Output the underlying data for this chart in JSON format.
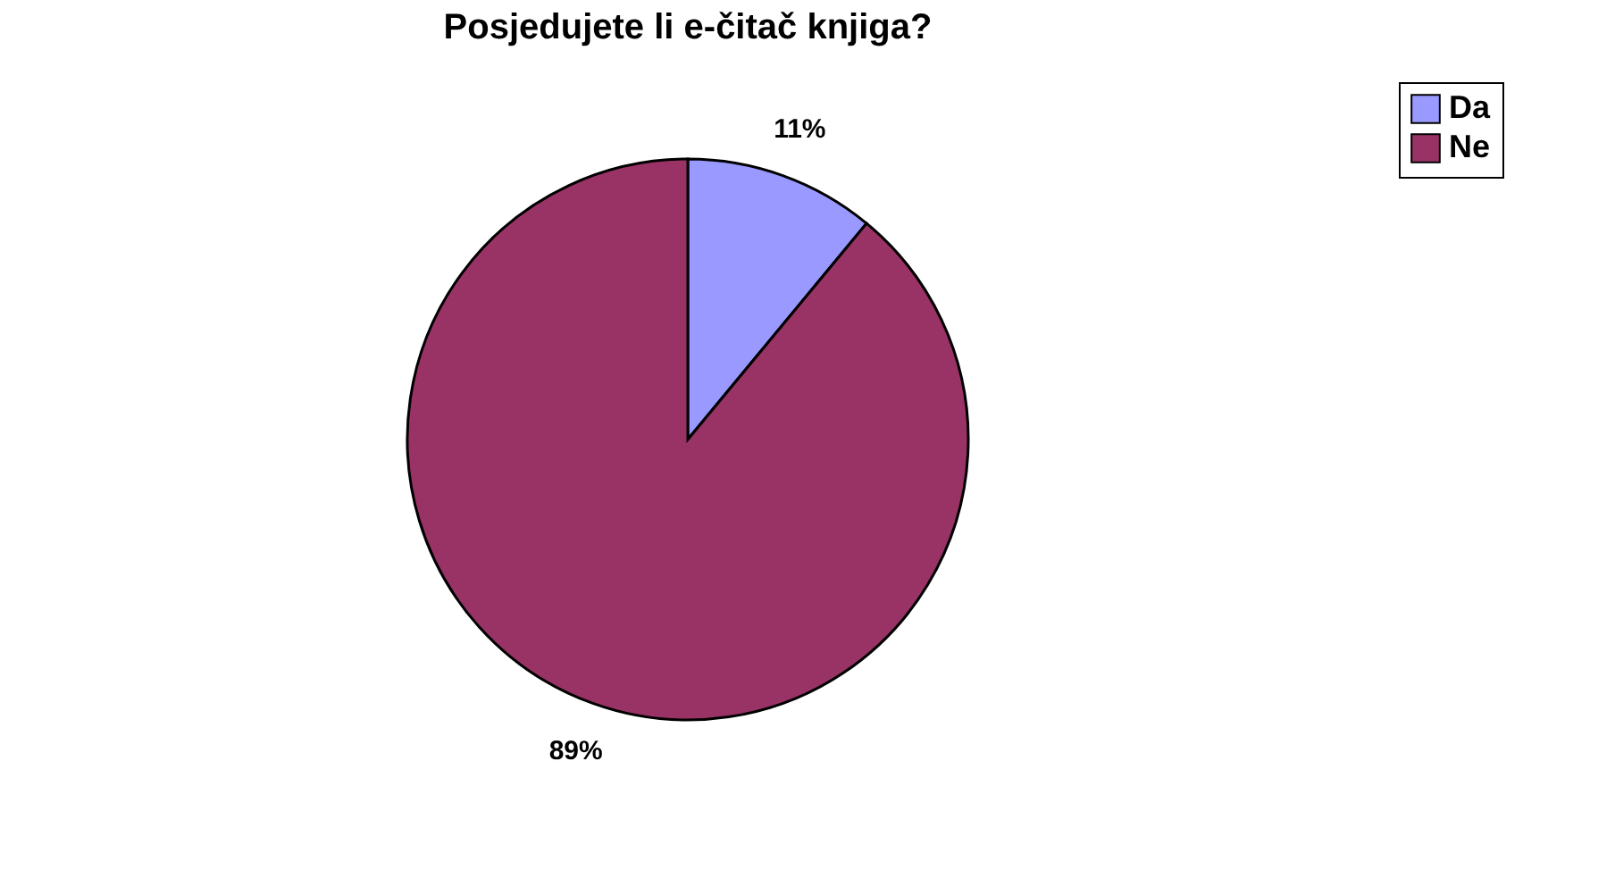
{
  "chart_data": {
    "type": "pie",
    "title": "Posjedujete li e-čitač knjiga?",
    "categories": [
      "Da",
      "Ne"
    ],
    "values": [
      11,
      89
    ],
    "colors": [
      "#9999ff",
      "#993366"
    ],
    "value_labels": [
      "11%",
      "89%"
    ],
    "legend": "right"
  }
}
